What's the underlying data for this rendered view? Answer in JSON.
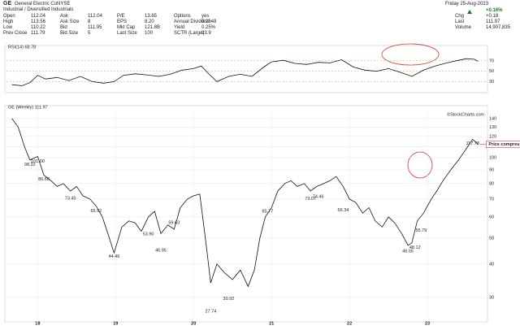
{
  "header": {
    "symbol": "GE",
    "name": "General Electric Co.",
    "exchange": "NYSE",
    "sector": "Industrial / Diversified Industrials",
    "fields": [
      [
        "Open",
        "112.04"
      ],
      [
        "High",
        "113.56"
      ],
      [
        "Low",
        "110.22"
      ],
      [
        "Prev Close",
        "111.79"
      ],
      [
        "Ask",
        "112.04"
      ],
      [
        "Ask Size",
        "8"
      ],
      [
        "Bid",
        "111.95"
      ],
      [
        "Bid Size",
        "5"
      ],
      [
        "P/E",
        "13.65"
      ],
      [
        "EPS",
        "8.20"
      ],
      [
        "Mkt Cap",
        "121.8B"
      ],
      [
        "Last Size",
        "100"
      ],
      [
        "Options",
        "yes"
      ],
      [
        "Annual Dividend",
        "0.2848"
      ],
      [
        "Yield",
        "0.25%"
      ],
      [
        "SCTR (Large)",
        "93.9"
      ]
    ],
    "date": "Friday 25-Aug-2023",
    "change_pct": "+0.16%",
    "right": [
      [
        "Chg",
        "+0.18"
      ],
      [
        "Last",
        "111.97"
      ],
      [
        "Volume",
        "14,907,835"
      ]
    ]
  },
  "chart_data": [
    {
      "type": "line",
      "title": "RSI(14) 68.78",
      "color": "#111",
      "xlim": [
        2017.6,
        2023.75
      ],
      "ylim": [
        15,
        90
      ],
      "yticks": [
        30,
        50,
        70
      ],
      "x": [
        2017.67,
        2017.8,
        2017.9,
        2018.0,
        2018.1,
        2018.25,
        2018.4,
        2018.55,
        2018.7,
        2018.85,
        2018.98,
        2019.1,
        2019.25,
        2019.4,
        2019.55,
        2019.7,
        2019.85,
        2020.0,
        2020.1,
        2020.2,
        2020.3,
        2020.45,
        2020.6,
        2020.75,
        2020.9,
        2021.0,
        2021.15,
        2021.3,
        2021.45,
        2021.6,
        2021.75,
        2021.9,
        2022.05,
        2022.2,
        2022.35,
        2022.5,
        2022.65,
        2022.8,
        2022.95,
        2023.1,
        2023.25,
        2023.4,
        2023.5,
        2023.6,
        2023.65
      ],
      "values": [
        24,
        22,
        28,
        42,
        35,
        38,
        32,
        40,
        30,
        27,
        30,
        42,
        45,
        43,
        40,
        44,
        52,
        55,
        60,
        44,
        30,
        40,
        44,
        40,
        58,
        68,
        71,
        65,
        63,
        67,
        66,
        72,
        58,
        52,
        50,
        55,
        48,
        40,
        52,
        60,
        66,
        71,
        74,
        73,
        69
      ]
    },
    {
      "type": "line",
      "title": "GE (Weekly) 111.97",
      "source": "©StockCharts.com",
      "color": "#111",
      "log": true,
      "xlim": [
        2017.6,
        2023.75
      ],
      "ylim": [
        25,
        150
      ],
      "yticks": [
        30,
        40,
        50,
        60,
        70,
        80,
        90,
        100,
        110,
        120,
        130,
        140
      ],
      "xticks": [
        {
          "value": 2018,
          "label": "18"
        },
        {
          "value": 2019,
          "label": "19"
        },
        {
          "value": 2020,
          "label": "20"
        },
        {
          "value": 2021,
          "label": "21"
        },
        {
          "value": 2022,
          "label": "22"
        },
        {
          "value": 2023,
          "label": "23"
        }
      ],
      "x": [
        2017.67,
        2017.75,
        2017.83,
        2017.9,
        2018.0,
        2018.08,
        2018.17,
        2018.25,
        2018.33,
        2018.42,
        2018.5,
        2018.58,
        2018.67,
        2018.75,
        2018.83,
        2018.92,
        2018.98,
        2019.08,
        2019.17,
        2019.25,
        2019.33,
        2019.42,
        2019.5,
        2019.58,
        2019.67,
        2019.75,
        2019.83,
        2019.92,
        2020.0,
        2020.08,
        2020.17,
        2020.22,
        2020.3,
        2020.4,
        2020.5,
        2020.6,
        2020.7,
        2020.78,
        2020.85,
        2020.92,
        2021.0,
        2021.08,
        2021.17,
        2021.25,
        2021.33,
        2021.42,
        2021.5,
        2021.58,
        2021.67,
        2021.75,
        2021.83,
        2021.92,
        2022.0,
        2022.08,
        2022.17,
        2022.25,
        2022.33,
        2022.42,
        2022.5,
        2022.58,
        2022.67,
        2022.75,
        2022.8,
        2022.87,
        2022.95,
        2023.05,
        2023.12,
        2023.2,
        2023.3,
        2023.4,
        2023.5,
        2023.58,
        2023.65
      ],
      "values": [
        140,
        130,
        110,
        98,
        101,
        86,
        82,
        78,
        80,
        75,
        78,
        72,
        70,
        66,
        60,
        50,
        44,
        55,
        58,
        57,
        53,
        60,
        63,
        52,
        56,
        54,
        65,
        70,
        72,
        73,
        45,
        34,
        40,
        37,
        35,
        38,
        33,
        38,
        50,
        60,
        65,
        75,
        80,
        82,
        78,
        80,
        75,
        78,
        80,
        82,
        85,
        78,
        70,
        68,
        62,
        65,
        58,
        55,
        60,
        57,
        52,
        47,
        48,
        58,
        62,
        70,
        75,
        82,
        90,
        98,
        108,
        117,
        112
      ],
      "labels": [
        {
          "x": 2017.9,
          "y": 98.32,
          "label": "98.32"
        },
        {
          "x": 2018.0,
          "y": 101.0,
          "label": "101.00"
        },
        {
          "x": 2018.08,
          "y": 86.6,
          "label": "86.60"
        },
        {
          "x": 2018.42,
          "y": 73.45,
          "label": "73.45"
        },
        {
          "x": 2018.75,
          "y": 65.92,
          "label": "65.92"
        },
        {
          "x": 2018.98,
          "y": 44.46,
          "label": "44.46"
        },
        {
          "x": 2019.42,
          "y": 53.9,
          "label": "53.90"
        },
        {
          "x": 2019.58,
          "y": 46.95,
          "label": "46.95"
        },
        {
          "x": 2019.75,
          "y": 59.63,
          "label": "59.63"
        },
        {
          "x": 2020.22,
          "y": 27.74,
          "label": "27.74"
        },
        {
          "x": 2020.45,
          "y": 30.92,
          "label": "30.92"
        },
        {
          "x": 2020.95,
          "y": 65.77,
          "label": "65.77"
        },
        {
          "x": 2021.5,
          "y": 73.07,
          "label": "73.07"
        },
        {
          "x": 2021.6,
          "y": 74.46,
          "label": "74.46"
        },
        {
          "x": 2021.92,
          "y": 66.34,
          "label": "66.34"
        },
        {
          "x": 2022.75,
          "y": 46.55,
          "label": "46.55"
        },
        {
          "x": 2022.84,
          "y": 48.12,
          "label": "48.12"
        },
        {
          "x": 2022.92,
          "y": 55.79,
          "label": "55.79"
        },
        {
          "x": 2023.58,
          "y": 117.78,
          "label": "117.78"
        }
      ],
      "annotation": "Price compression"
    }
  ]
}
